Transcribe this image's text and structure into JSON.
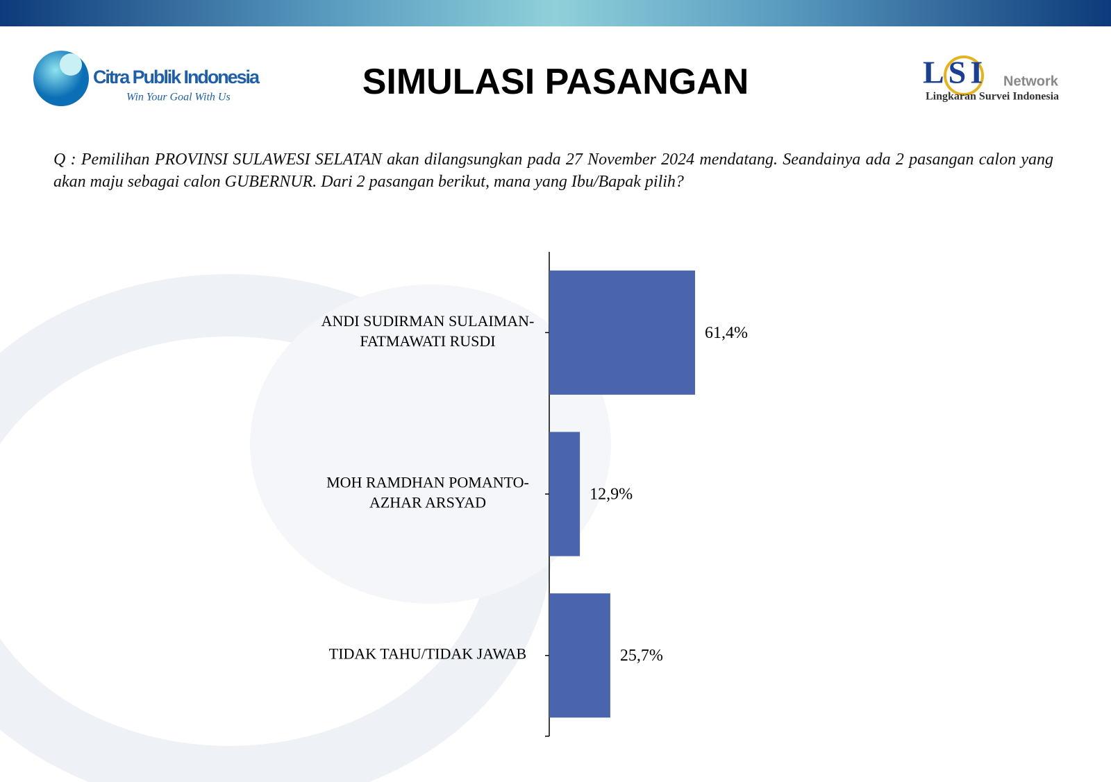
{
  "header": {
    "title": "SIMULASI PASANGAN",
    "left_logo": {
      "name": "Citra Publik Indonesia",
      "tagline": "Win Your Goal With Us"
    },
    "right_logo": {
      "mark": "LSI",
      "network": "Network",
      "name": "Lingkaran Survei Indonesia"
    }
  },
  "question": "Q : Pemilihan PROVINSI SULAWESI SELATAN akan dilangsungkan pada 27 November 2024 mendatang. Seandainya ada 2 pasangan calon yang akan maju sebagai calon GUBERNUR. Dari 2 pasangan berikut, mana yang Ibu/Bapak pilih?",
  "chart_data": {
    "type": "bar",
    "orientation": "horizontal",
    "categories": [
      [
        "ANDI SUDIRMAN SULAIMAN-",
        "FATMAWATI RUSDI"
      ],
      [
        "MOH RAMDHAN POMANTO-",
        "AZHAR ARSYAD"
      ],
      [
        "TIDAK TAHU/TIDAK JAWAB"
      ]
    ],
    "values": [
      61.4,
      12.9,
      25.7
    ],
    "value_labels": [
      "61,4%",
      "12,9%",
      "25,7%"
    ],
    "color": "#4a65ae"
  }
}
